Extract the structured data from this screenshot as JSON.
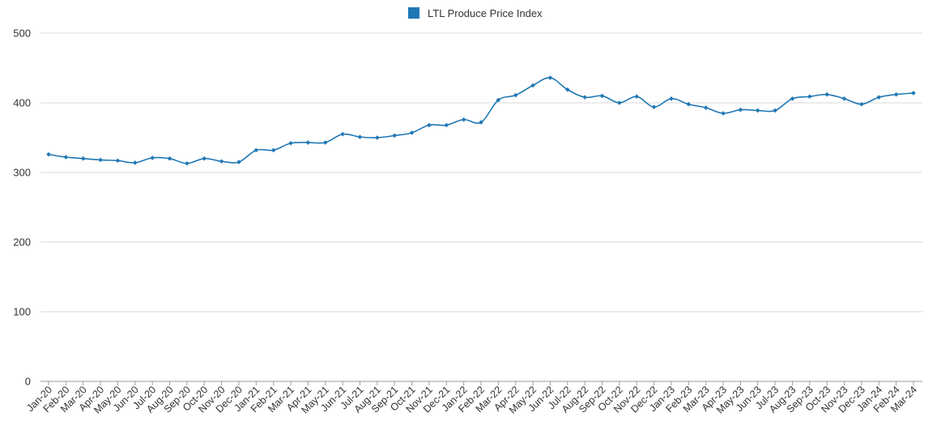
{
  "chart_data": {
    "type": "line",
    "title": "",
    "xlabel": "",
    "ylabel": "",
    "ylim": [
      0,
      500
    ],
    "yticks": [
      0,
      100,
      200,
      300,
      400,
      500
    ],
    "grid": true,
    "legend_position": "top-center",
    "categories": [
      "Jan-20",
      "Feb-20",
      "Mar-20",
      "Apr-20",
      "May-20",
      "Jun-20",
      "Jul-20",
      "Aug-20",
      "Sep-20",
      "Oct-20",
      "Nov-20",
      "Dec-20",
      "Jan-21",
      "Feb-21",
      "Mar-21",
      "Apr-21",
      "May-21",
      "Jun-21",
      "Jul-21",
      "Aug-21",
      "Sep-21",
      "Oct-21",
      "Nov-21",
      "Dec-21",
      "Jan-22",
      "Feb-22",
      "Mar-22",
      "Apr-22",
      "May-22",
      "Jun-22",
      "Jul-22",
      "Aug-22",
      "Sep-22",
      "Oct-22",
      "Nov-22",
      "Dec-22",
      "Jan-23",
      "Feb-23",
      "Mar-23",
      "Apr-23",
      "May-23",
      "Jun-23",
      "Jul-23",
      "Aug-23",
      "Sep-23",
      "Oct-23",
      "Nov-23",
      "Dec-23",
      "Jan-24",
      "Feb-24",
      "Mar-24"
    ],
    "series": [
      {
        "name": "LTL Produce Price Index",
        "color": "#1f77b4",
        "values": [
          326,
          322,
          320,
          318,
          317,
          314,
          321,
          320,
          313,
          320,
          316,
          315,
          332,
          332,
          342,
          343,
          343,
          355,
          351,
          350,
          353,
          357,
          368,
          368,
          376,
          372,
          404,
          411,
          425,
          436,
          419,
          408,
          410,
          400,
          409,
          394,
          406,
          398,
          393,
          385,
          390,
          389,
          389,
          406,
          409,
          412,
          406,
          398,
          408,
          412,
          414
        ]
      }
    ]
  },
  "colors": {
    "legend_swatch": "#1f77b4",
    "grid": "#d9d9d9",
    "axis": "#9a9a9a"
  }
}
